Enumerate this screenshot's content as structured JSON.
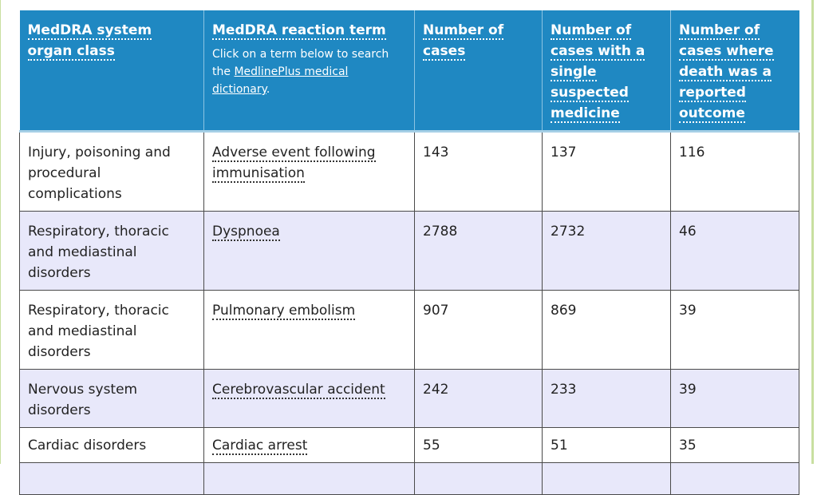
{
  "table": {
    "headers": {
      "soc": "MedDRA system organ class",
      "term": "MedDRA reaction term",
      "term_note_prefix": "Click on a term below to search the ",
      "term_note_link": "MedlinePlus medical dictionary",
      "term_note_suffix": ".",
      "cases": "Number of cases",
      "single": "Number of cases with a single suspected medicine",
      "death": "Number of cases where death was a reported outcome"
    },
    "rows": [
      {
        "soc": "Injury, poisoning and procedural complications",
        "term": "Adverse event following immunisation",
        "cases": "143",
        "single": "137",
        "death": "116"
      },
      {
        "soc": "Respiratory, thoracic and mediastinal disorders",
        "term": "Dyspnoea",
        "cases": "2788",
        "single": "2732",
        "death": "46"
      },
      {
        "soc": "Respiratory, thoracic and mediastinal disorders",
        "term": "Pulmonary embolism",
        "cases": "907",
        "single": "869",
        "death": "39"
      },
      {
        "soc": "Nervous system disorders",
        "term": "Cerebrovascular accident",
        "cases": "242",
        "single": "233",
        "death": "39"
      },
      {
        "soc": "Cardiac disorders",
        "term": "Cardiac arrest",
        "cases": "55",
        "single": "51",
        "death": "35"
      },
      {
        "soc": "",
        "term": "",
        "cases": "",
        "single": "",
        "death": ""
      }
    ]
  }
}
